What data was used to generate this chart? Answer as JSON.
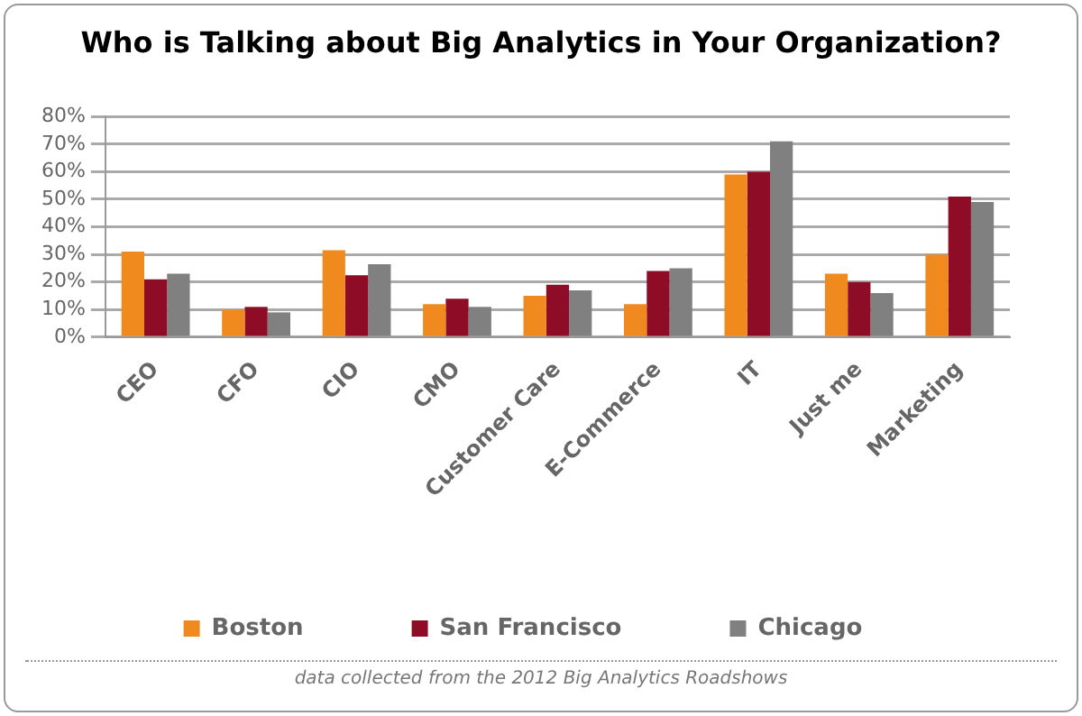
{
  "chart_data": {
    "type": "bar",
    "title": "Who is Talking about Big Analytics in Your Organization?",
    "categories": [
      "CEO",
      "CFO",
      "CIO",
      "CMO",
      "Customer Care",
      "E-Commerce",
      "IT",
      "Just me",
      "Marketing"
    ],
    "series": [
      {
        "name": "Boston",
        "color": "#f08a1e",
        "values": [
          31,
          10,
          31.5,
          12,
          15,
          12,
          59,
          23,
          30
        ]
      },
      {
        "name": "San Francisco",
        "color": "#8e0c25",
        "values": [
          21,
          11,
          22.5,
          14,
          19,
          24,
          60,
          20,
          51
        ]
      },
      {
        "name": "Chicago",
        "color": "#808080",
        "values": [
          23,
          9,
          26.5,
          11,
          17,
          25,
          71,
          16,
          49
        ]
      }
    ],
    "ylim": [
      0,
      80
    ],
    "yticks": [
      {
        "value": 0,
        "label": "0%"
      },
      {
        "value": 10,
        "label": "10%"
      },
      {
        "value": 20,
        "label": "20%"
      },
      {
        "value": 30,
        "label": "30%"
      },
      {
        "value": 40,
        "label": "40%"
      },
      {
        "value": 50,
        "label": "50%"
      },
      {
        "value": 60,
        "label": "60%"
      },
      {
        "value": 70,
        "label": "70%"
      },
      {
        "value": 80,
        "label": "80%"
      }
    ],
    "grid": "y",
    "legend": "bottom",
    "annotations": [
      "data collected from the 2012 Big Analytics Roadshows"
    ]
  }
}
